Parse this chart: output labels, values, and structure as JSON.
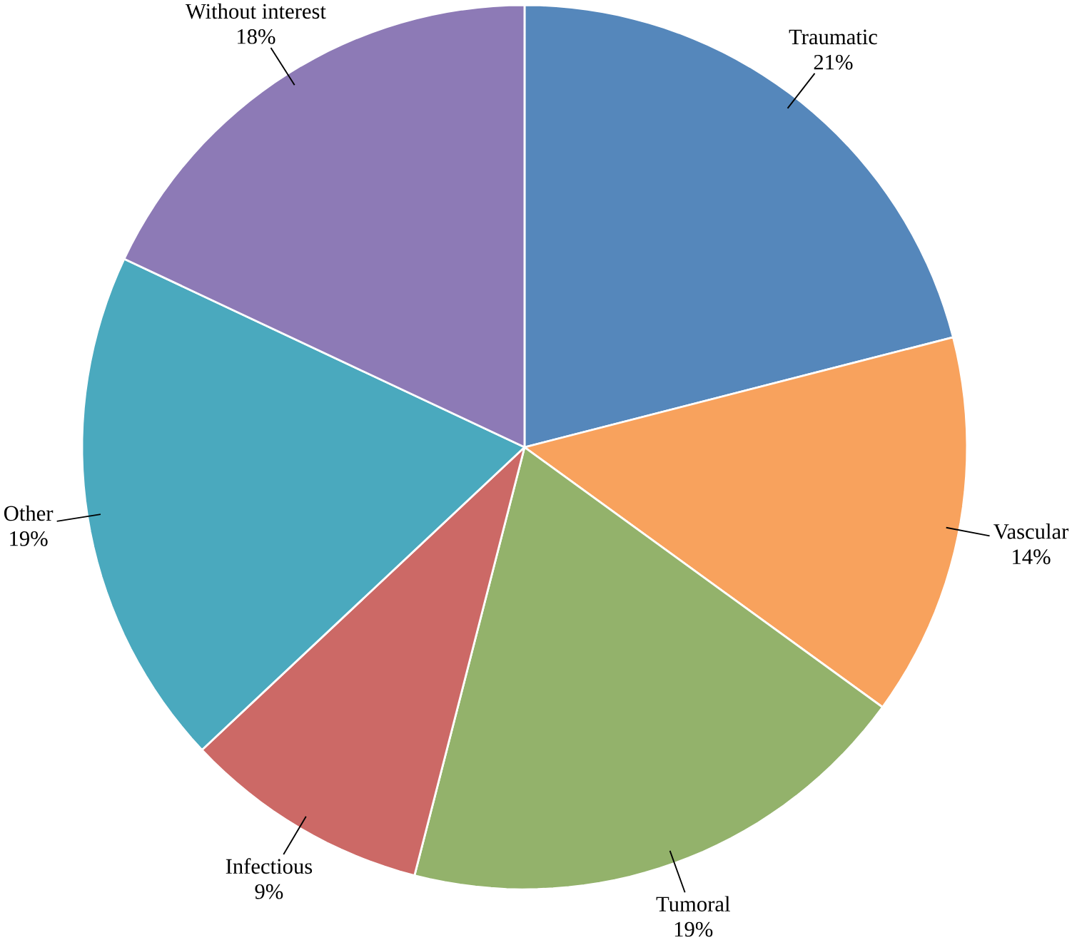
{
  "chart_data": {
    "type": "pie",
    "categories": [
      "Traumatic",
      "Vascular",
      "Tumoral",
      "Infectious",
      "Other",
      "Without interest"
    ],
    "values": [
      21,
      14,
      19,
      9,
      19,
      18
    ],
    "value_labels": [
      "21%",
      "14%",
      "19%",
      "9%",
      "19%",
      "18%"
    ],
    "colors": [
      "#5587bb",
      "#f8a25d",
      "#93b26b",
      "#cc6966",
      "#4aa9be",
      "#8d7ab6"
    ]
  }
}
